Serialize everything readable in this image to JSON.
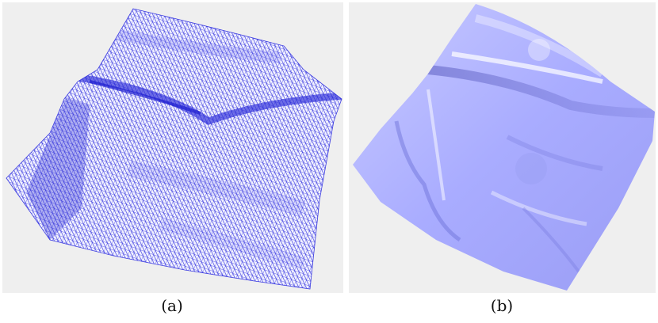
{
  "figure": {
    "panels": [
      {
        "caption": "(a)",
        "render_style": "wireframe",
        "mesh_color": "#3c3ce0",
        "background": "#efefef"
      },
      {
        "caption": "(b)",
        "render_style": "shaded surface",
        "mesh_color": "#a9acff",
        "background": "#efefef"
      }
    ]
  }
}
